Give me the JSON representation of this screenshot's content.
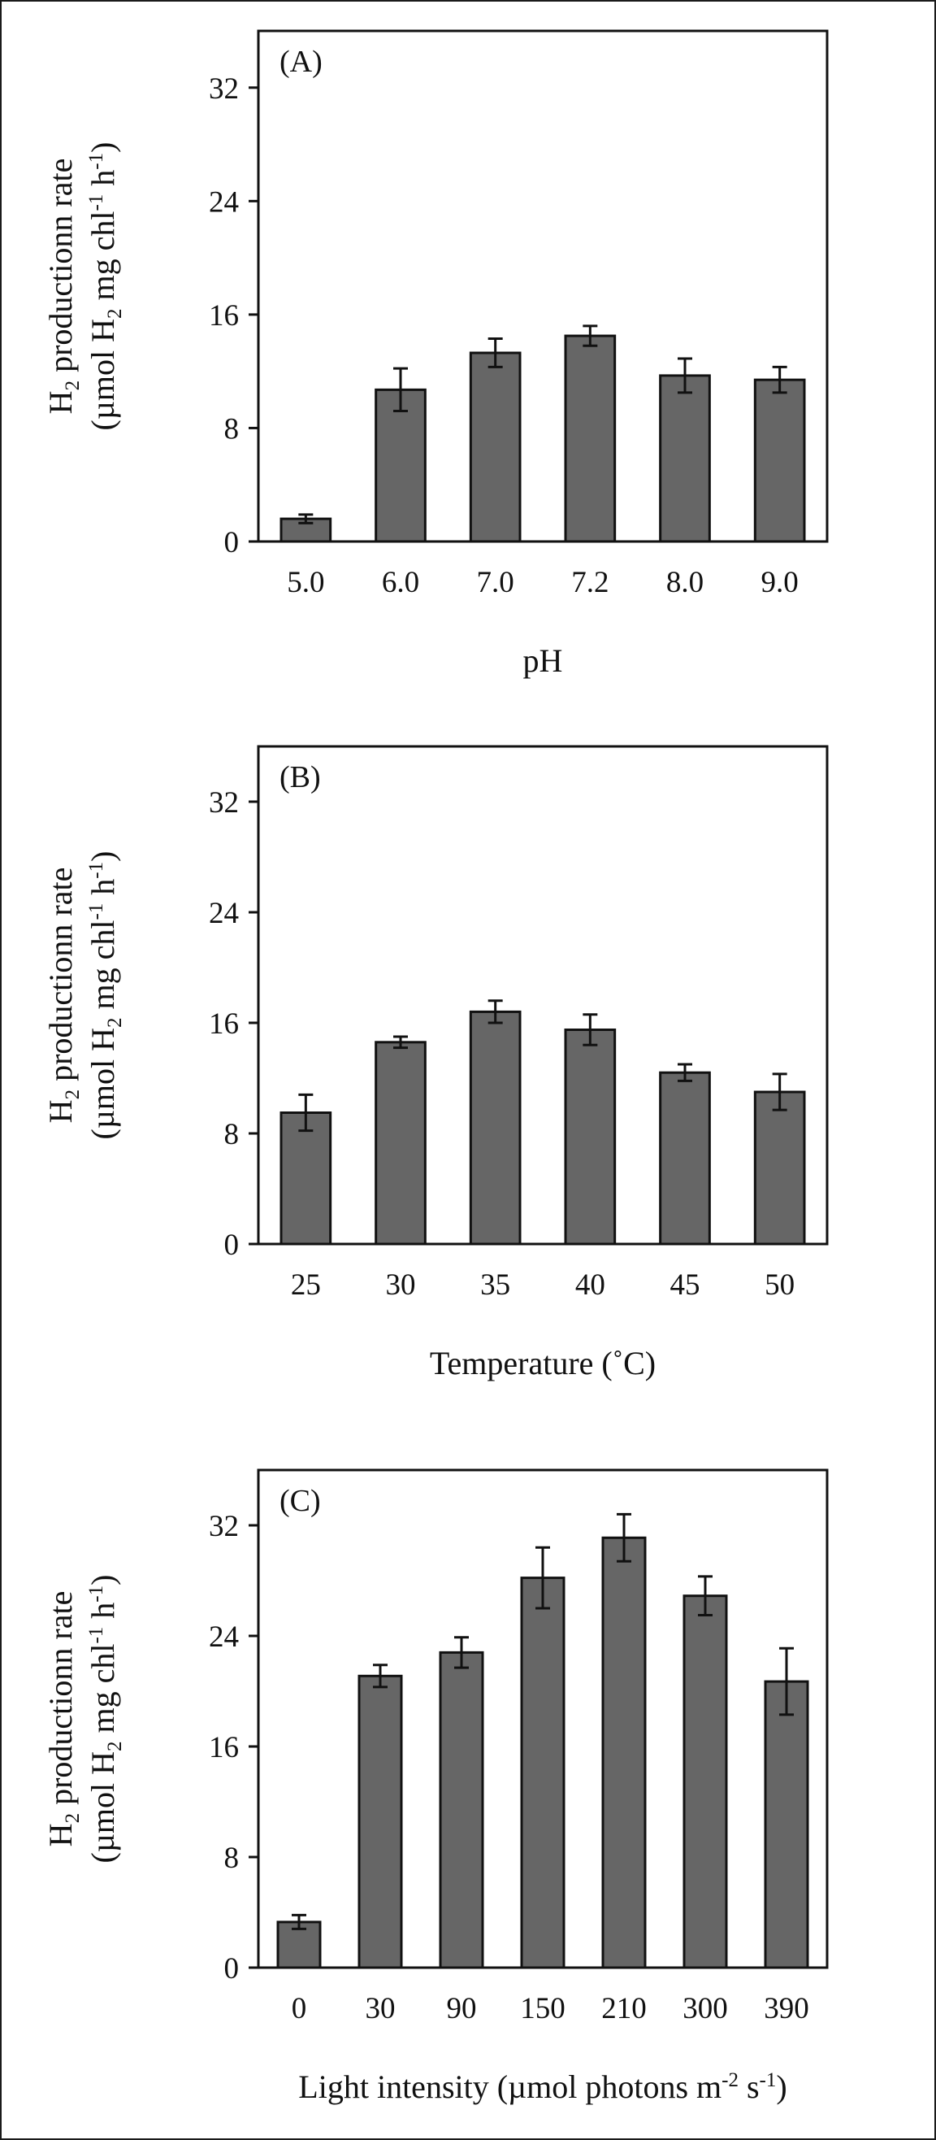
{
  "colors": {
    "bar": "#666666",
    "bar_stroke": "#111111",
    "axis": "#111111",
    "background": "#ffffff"
  },
  "chart_data": [
    {
      "type": "bar",
      "panel_label": "(A)",
      "categories": [
        "5.0",
        "6.0",
        "7.0",
        "7.2",
        "8.0",
        "9.0"
      ],
      "values": [
        1.6,
        10.7,
        13.3,
        14.5,
        11.7,
        11.4
      ],
      "errors": [
        0.3,
        1.5,
        1.0,
        0.7,
        1.2,
        0.9
      ],
      "xlabel": "pH",
      "ylabel": {
        "line1": "H",
        "line1_sub": "2",
        "line1_rest": " productionn rate",
        "line2": "(µmol H",
        "line2_sub": "2",
        "line2_mid": " mg chl",
        "line2_sup1": "-1",
        "line2_mid2": " h",
        "line2_sup2": "-1",
        "line2_end": ")"
      },
      "ylim": [
        0,
        36
      ],
      "yticks": [
        0,
        8,
        16,
        24,
        32
      ],
      "legend": "none",
      "grid": false
    },
    {
      "type": "bar",
      "panel_label": "(B)",
      "categories": [
        "25",
        "30",
        "35",
        "40",
        "45",
        "50"
      ],
      "values": [
        9.5,
        14.6,
        16.8,
        15.5,
        12.4,
        11.0
      ],
      "errors": [
        1.3,
        0.4,
        0.8,
        1.1,
        0.6,
        1.3
      ],
      "xlabel": "Temperature (˚C)",
      "ylabel": {
        "line1": "H",
        "line1_sub": "2",
        "line1_rest": " productionn rate",
        "line2": "(µmol H",
        "line2_sub": "2",
        "line2_mid": " mg chl",
        "line2_sup1": "-1",
        "line2_mid2": " h",
        "line2_sup2": "-1",
        "line2_end": ")"
      },
      "ylim": [
        0,
        36
      ],
      "yticks": [
        0,
        8,
        16,
        24,
        32
      ],
      "legend": "none",
      "grid": false
    },
    {
      "type": "bar",
      "panel_label": "(C)",
      "categories": [
        "0",
        "30",
        "90",
        "150",
        "210",
        "300",
        "390"
      ],
      "values": [
        3.3,
        21.1,
        22.8,
        28.2,
        31.1,
        26.9,
        20.7
      ],
      "errors": [
        0.5,
        0.8,
        1.1,
        2.2,
        1.7,
        1.4,
        2.4
      ],
      "xlabel": {
        "text": "Light intensity (µmol photons m",
        "sup1": "-2",
        "mid": " s",
        "sup2": "-1",
        "end": ")"
      },
      "ylabel": {
        "line1": "H",
        "line1_sub": "2",
        "line1_rest": " productionn rate",
        "line2": "(µmol H",
        "line2_sub": "2",
        "line2_mid": " mg chl",
        "line2_sup1": "-1",
        "line2_mid2": " h",
        "line2_sup2": "-1",
        "line2_end": ")"
      },
      "ylim": [
        0,
        36
      ],
      "yticks": [
        0,
        8,
        16,
        24,
        32
      ],
      "legend": "none",
      "grid": false
    }
  ]
}
